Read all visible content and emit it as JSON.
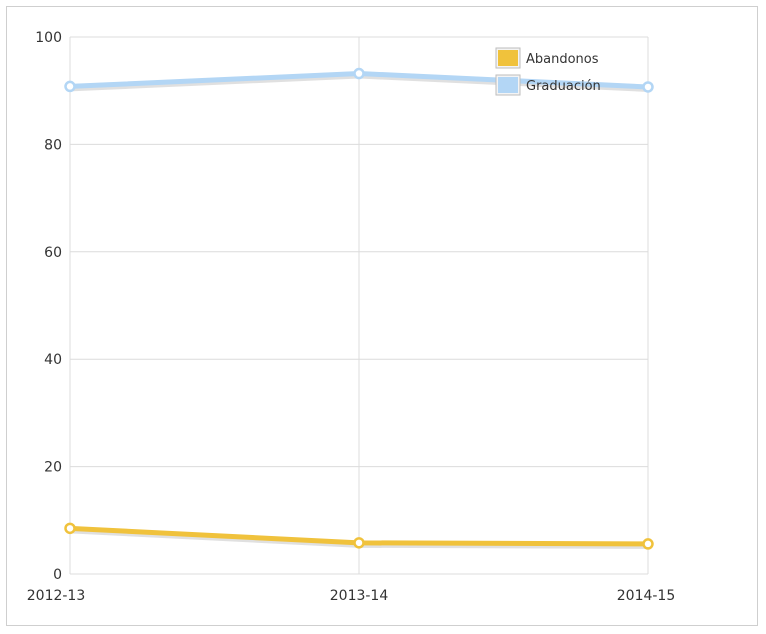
{
  "chart_data": {
    "type": "line",
    "title": "",
    "xlabel": "",
    "ylabel": "",
    "categories": [
      "2012-13",
      "2013-14",
      "2014-15"
    ],
    "ylim": [
      0,
      100
    ],
    "yticks": [
      "0",
      "20",
      "40",
      "60",
      "80",
      "100"
    ],
    "ytick_values": [
      0,
      20,
      40,
      60,
      80,
      100
    ],
    "grid": true,
    "legend_position": "top-right",
    "series": [
      {
        "name": "Abandonos",
        "values": [
          8.5,
          5.8,
          5.6
        ],
        "color": "#f0c23c"
      },
      {
        "name": "Graduación",
        "values": [
          90.8,
          93.2,
          90.7
        ],
        "color": "#b3d6f5"
      }
    ]
  }
}
